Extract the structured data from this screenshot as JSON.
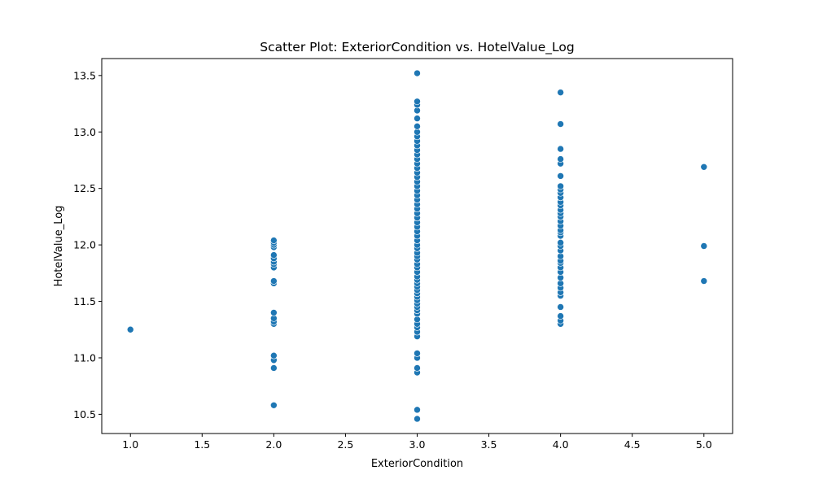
{
  "chart_data": {
    "type": "scatter",
    "title": "Scatter Plot: ExteriorCondition vs. HotelValue_Log",
    "xlabel": "ExteriorCondition",
    "ylabel": "HotelValue_Log",
    "xlim": [
      0.8,
      5.2
    ],
    "ylim": [
      10.33,
      13.65
    ],
    "xticks": [
      "1.0",
      "1.5",
      "2.0",
      "2.5",
      "3.0",
      "3.5",
      "4.0",
      "4.5",
      "5.0"
    ],
    "yticks": [
      "10.5",
      "11.0",
      "11.5",
      "12.0",
      "12.5",
      "13.0",
      "13.5"
    ],
    "grid": false,
    "legend": "none",
    "series": [
      {
        "color": "#1f77b4",
        "points": [
          [
            1,
            11.25
          ],
          [
            2,
            10.58
          ],
          [
            2,
            10.91
          ],
          [
            2,
            10.98
          ],
          [
            2,
            11.02
          ],
          [
            2,
            11.3
          ],
          [
            2,
            11.32
          ],
          [
            2,
            11.35
          ],
          [
            2,
            11.4
          ],
          [
            2,
            11.66
          ],
          [
            2,
            11.68
          ],
          [
            2,
            11.8
          ],
          [
            2,
            11.83
          ],
          [
            2,
            11.85
          ],
          [
            2,
            11.88
          ],
          [
            2,
            11.91
          ],
          [
            2,
            11.98
          ],
          [
            2,
            12.0
          ],
          [
            2,
            12.02
          ],
          [
            2,
            12.04
          ],
          [
            3,
            10.46
          ],
          [
            3,
            10.54
          ],
          [
            3,
            10.87
          ],
          [
            3,
            10.91
          ],
          [
            3,
            11.0
          ],
          [
            3,
            11.04
          ],
          [
            3,
            11.19
          ],
          [
            3,
            11.23
          ],
          [
            3,
            11.27
          ],
          [
            3,
            11.3
          ],
          [
            3,
            11.34
          ],
          [
            3,
            11.39
          ],
          [
            3,
            11.42
          ],
          [
            3,
            11.45
          ],
          [
            3,
            11.48
          ],
          [
            3,
            11.51
          ],
          [
            3,
            11.54
          ],
          [
            3,
            11.57
          ],
          [
            3,
            11.6
          ],
          [
            3,
            11.63
          ],
          [
            3,
            11.66
          ],
          [
            3,
            11.69
          ],
          [
            3,
            11.72
          ],
          [
            3,
            11.76
          ],
          [
            3,
            11.8
          ],
          [
            3,
            11.83
          ],
          [
            3,
            11.87
          ],
          [
            3,
            11.9
          ],
          [
            3,
            11.93
          ],
          [
            3,
            11.97
          ],
          [
            3,
            12.0
          ],
          [
            3,
            12.04
          ],
          [
            3,
            12.08
          ],
          [
            3,
            12.12
          ],
          [
            3,
            12.16
          ],
          [
            3,
            12.2
          ],
          [
            3,
            12.24
          ],
          [
            3,
            12.28
          ],
          [
            3,
            12.32
          ],
          [
            3,
            12.36
          ],
          [
            3,
            12.4
          ],
          [
            3,
            12.44
          ],
          [
            3,
            12.48
          ],
          [
            3,
            12.52
          ],
          [
            3,
            12.56
          ],
          [
            3,
            12.6
          ],
          [
            3,
            12.64
          ],
          [
            3,
            12.68
          ],
          [
            3,
            12.72
          ],
          [
            3,
            12.76
          ],
          [
            3,
            12.8
          ],
          [
            3,
            12.84
          ],
          [
            3,
            12.88
          ],
          [
            3,
            12.92
          ],
          [
            3,
            12.96
          ],
          [
            3,
            13.0
          ],
          [
            3,
            13.05
          ],
          [
            3,
            13.12
          ],
          [
            3,
            13.19
          ],
          [
            3,
            13.24
          ],
          [
            3,
            13.27
          ],
          [
            3,
            13.52
          ],
          [
            4,
            11.3
          ],
          [
            4,
            11.33
          ],
          [
            4,
            11.37
          ],
          [
            4,
            11.45
          ],
          [
            4,
            11.55
          ],
          [
            4,
            11.58
          ],
          [
            4,
            11.62
          ],
          [
            4,
            11.66
          ],
          [
            4,
            11.71
          ],
          [
            4,
            11.76
          ],
          [
            4,
            11.8
          ],
          [
            4,
            11.84
          ],
          [
            4,
            11.86
          ],
          [
            4,
            11.9
          ],
          [
            4,
            11.95
          ],
          [
            4,
            11.99
          ],
          [
            4,
            12.02
          ],
          [
            4,
            12.08
          ],
          [
            4,
            12.11
          ],
          [
            4,
            12.13
          ],
          [
            4,
            12.17
          ],
          [
            4,
            12.21
          ],
          [
            4,
            12.25
          ],
          [
            4,
            12.28
          ],
          [
            4,
            12.31
          ],
          [
            4,
            12.35
          ],
          [
            4,
            12.38
          ],
          [
            4,
            12.42
          ],
          [
            4,
            12.46
          ],
          [
            4,
            12.49
          ],
          [
            4,
            12.52
          ],
          [
            4,
            12.61
          ],
          [
            4,
            12.72
          ],
          [
            4,
            12.76
          ],
          [
            4,
            12.85
          ],
          [
            4,
            13.07
          ],
          [
            4,
            13.35
          ],
          [
            5,
            11.68
          ],
          [
            5,
            11.99
          ],
          [
            5,
            12.69
          ]
        ]
      }
    ]
  }
}
